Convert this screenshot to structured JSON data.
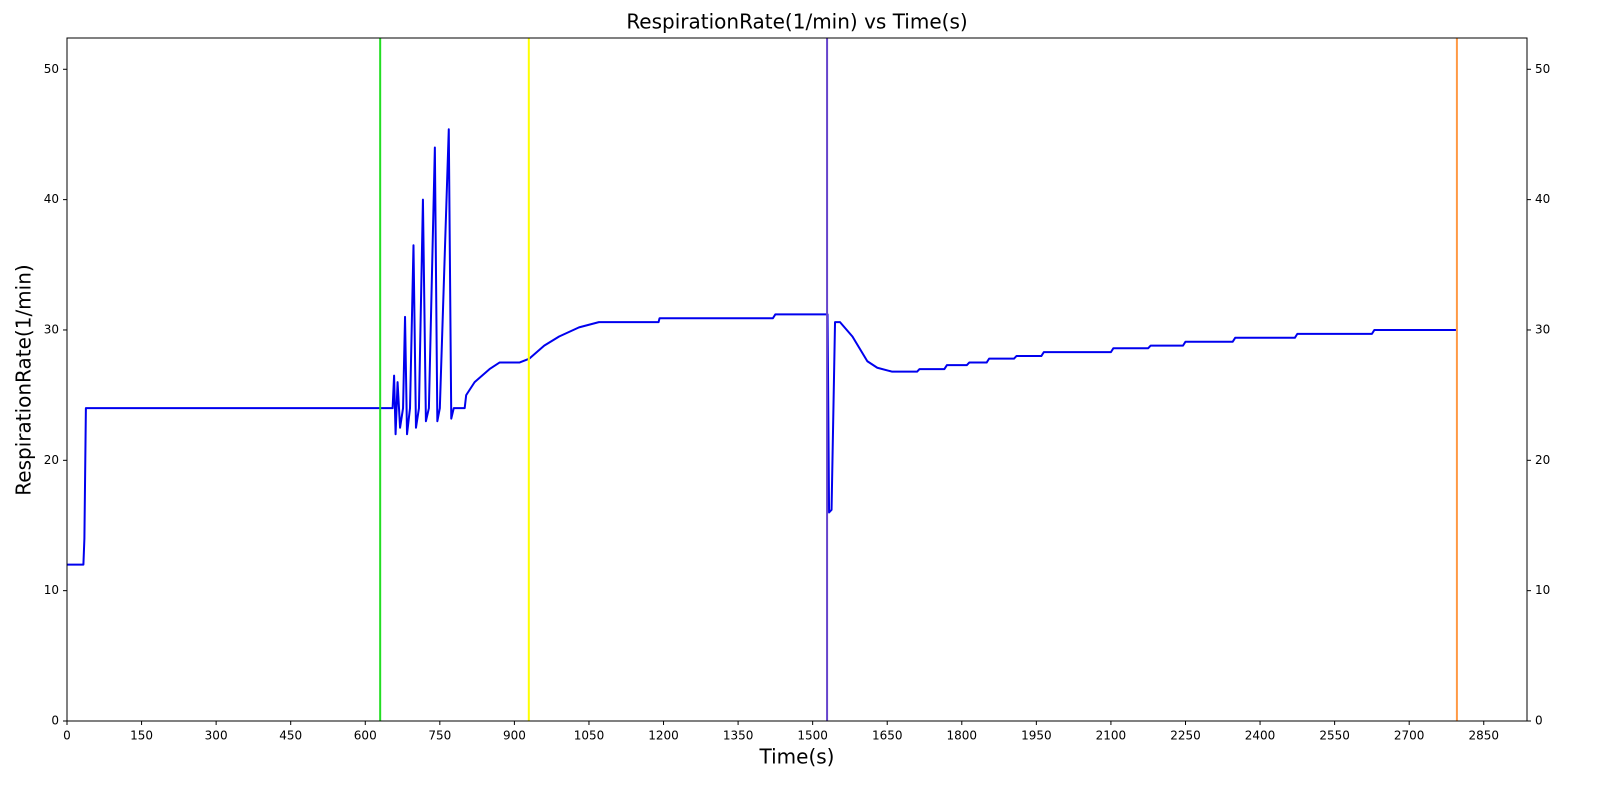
{
  "chart_data": {
    "type": "line",
    "title": "RespirationRate(1/min) vs Time(s)",
    "xlabel": "Time(s)",
    "ylabel": "RespirationRate(1/min)",
    "xlim": [
      0,
      2937
    ],
    "ylim": [
      0,
      52.4
    ],
    "y2lim": [
      0,
      52.4
    ],
    "xticks": [
      0,
      150,
      300,
      450,
      600,
      750,
      900,
      1050,
      1200,
      1350,
      1500,
      1650,
      1800,
      1950,
      2100,
      2250,
      2400,
      2550,
      2700,
      2850
    ],
    "yticks": [
      0,
      10,
      20,
      30,
      40,
      50
    ],
    "y2ticks": [
      0,
      10,
      20,
      30,
      40,
      50
    ],
    "grid": false,
    "vlines": [
      {
        "x": 630,
        "color": "#22dd22"
      },
      {
        "x": 929,
        "color": "#ffff00"
      },
      {
        "x": 1529,
        "color": "#6644cc"
      },
      {
        "x": 2796,
        "color": "#ff9944"
      }
    ],
    "series": [
      {
        "color": "#0000ee",
        "x": [
          0,
          33,
          35,
          38,
          630,
          655,
          658,
          661,
          665,
          670,
          676,
          680,
          684,
          690,
          697,
          702,
          708,
          716,
          722,
          728,
          740,
          745,
          750,
          768,
          773,
          778,
          800,
          803,
          820,
          850,
          870,
          910,
          930,
          960,
          990,
          1030,
          1070,
          1190,
          1192,
          1420,
          1425,
          1530,
          1533,
          1538,
          1545,
          1555,
          1580,
          1610,
          1630,
          1660,
          1710,
          1715,
          1765,
          1770,
          1810,
          1815,
          1850,
          1855,
          1905,
          1910,
          1960,
          1965,
          2100,
          2105,
          2175,
          2180,
          2245,
          2250,
          2345,
          2350,
          2470,
          2475,
          2625,
          2630,
          2796
        ],
        "values": [
          12,
          12,
          14,
          24,
          24,
          24,
          26.5,
          22,
          26,
          22.5,
          24,
          31,
          22,
          24,
          36.5,
          22.5,
          24,
          40,
          23,
          24,
          44,
          23,
          24,
          45.4,
          23.2,
          24,
          24,
          25,
          26,
          27,
          27.5,
          27.5,
          27.8,
          28.8,
          29.5,
          30.2,
          30.6,
          30.6,
          30.9,
          30.9,
          31.2,
          31.2,
          16,
          16.2,
          30.6,
          30.6,
          29.5,
          27.6,
          27.1,
          26.8,
          26.8,
          27.0,
          27.0,
          27.3,
          27.3,
          27.5,
          27.5,
          27.8,
          27.8,
          28.0,
          28.0,
          28.3,
          28.3,
          28.6,
          28.6,
          28.8,
          28.8,
          29.1,
          29.1,
          29.4,
          29.4,
          29.7,
          29.7,
          30.0,
          30.0
        ]
      }
    ]
  }
}
